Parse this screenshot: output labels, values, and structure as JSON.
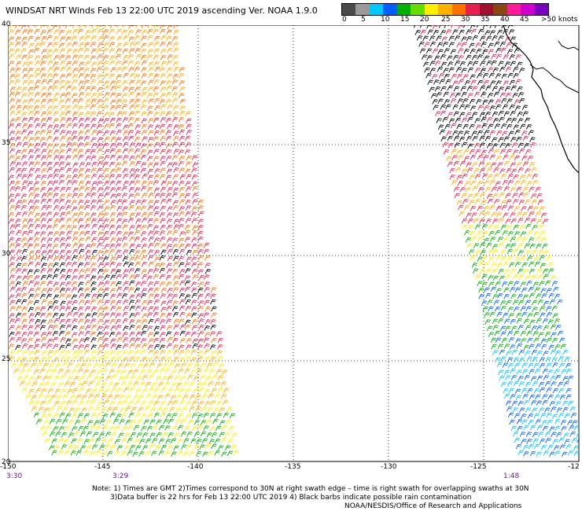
{
  "title": "WINDSAT NRT Winds Feb 13 22:00 UTC 2019 ascending  Ver. NOAA 1.9.0",
  "scale": {
    "colors": [
      "#4a4a4a",
      "#9a9a9a",
      "#00c8ff",
      "#0060ff",
      "#00b000",
      "#66dd00",
      "#ffee00",
      "#ffb000",
      "#ff7000",
      "#e82050",
      "#a01030",
      "#8b4513",
      "#ff1a9a",
      "#d000d0",
      "#7a00c0"
    ],
    "labels": [
      "0",
      "5",
      "10",
      "15",
      "20",
      "25",
      "30",
      "35",
      "40",
      "45",
      ">50 knots"
    ]
  },
  "axes": {
    "lon_labels": [
      "-150",
      "-145",
      "-140",
      "-135",
      "-130",
      "-125",
      "-12"
    ],
    "lat_labels": [
      "40",
      "35",
      "30",
      "25",
      "20"
    ]
  },
  "swath_times": [
    "3:30",
    "3:29",
    "1:48"
  ],
  "notes": [
    "Note: 1) Times are GMT 2)Times correspond to 30N at right swath edge – time is right swath for overlapping swaths at 30N",
    "3)Data buffer is 22 hrs for Feb 13 22:00 UTC 2019 4) Black barbs indicate possible rain contamination",
    "NOAA/NESDIS/Office of Research and Applications"
  ]
}
